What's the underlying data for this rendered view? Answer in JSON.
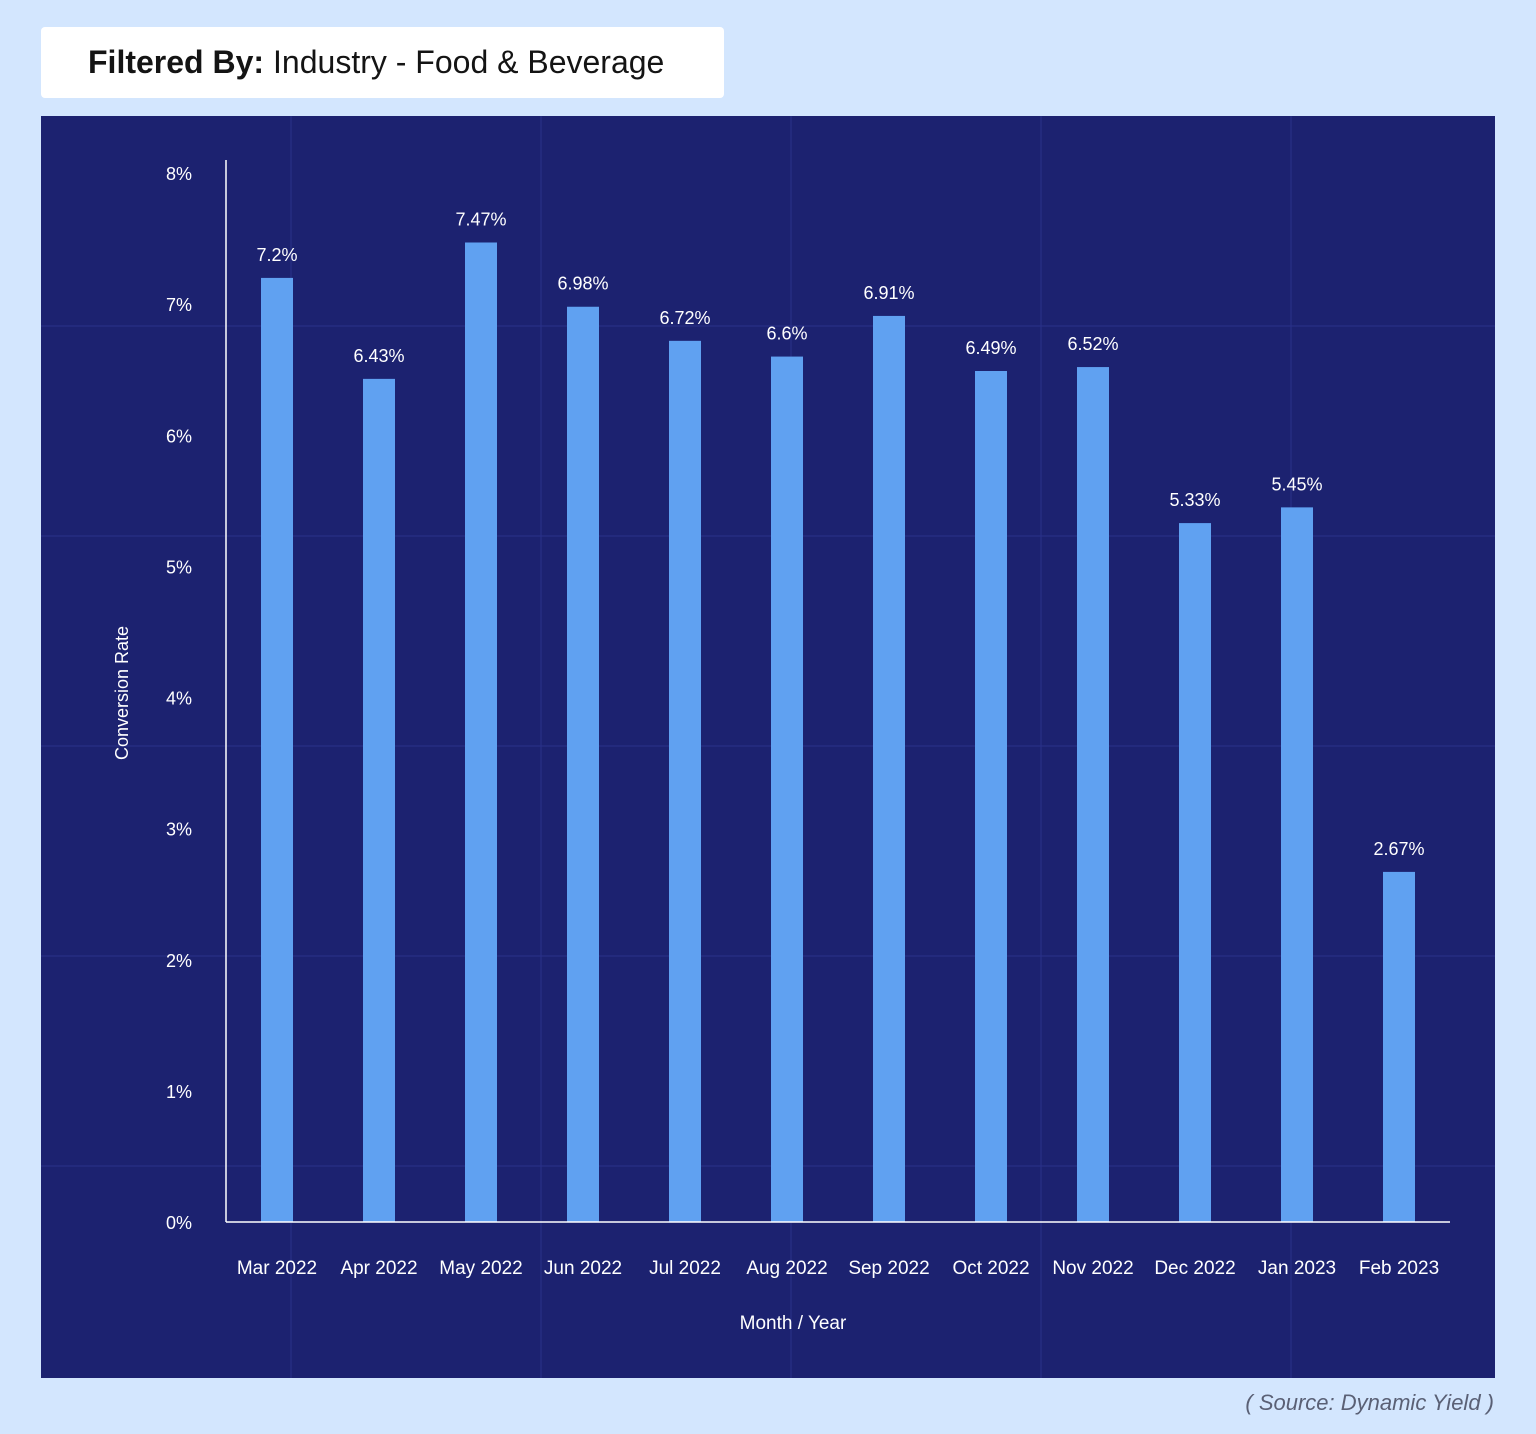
{
  "filter": {
    "label": "Filtered By:",
    "value": "Industry - Food & Beverage"
  },
  "source": "( Source: Dynamic Yield )",
  "colors": {
    "background": "#d3e6fe",
    "panel": "#1c2270",
    "bar": "#60a1f1",
    "text": "#ffffff"
  },
  "chart_data": {
    "type": "bar",
    "categories": [
      "Mar 2022",
      "Apr 2022",
      "May 2022",
      "Jun 2022",
      "Jul 2022",
      "Aug 2022",
      "Sep 2022",
      "Oct 2022",
      "Nov 2022",
      "Dec 2022",
      "Jan 2023",
      "Feb 2023"
    ],
    "values": [
      7.2,
      6.43,
      7.47,
      6.98,
      6.72,
      6.6,
      6.91,
      6.49,
      6.52,
      5.33,
      5.45,
      2.67
    ],
    "data_labels": [
      "7.2%",
      "6.43%",
      "7.47%",
      "6.98%",
      "6.72%",
      "6.6%",
      "6.91%",
      "6.49%",
      "6.52%",
      "5.33%",
      "5.45%",
      "2.67%"
    ],
    "ylabel": "Conversion Rate",
    "xlabel": "Month / Year",
    "ylim": [
      0,
      8
    ],
    "y_ticks": [
      "0%",
      "1%",
      "2%",
      "3%",
      "4%",
      "5%",
      "6%",
      "7%",
      "8%"
    ],
    "grid": true
  }
}
